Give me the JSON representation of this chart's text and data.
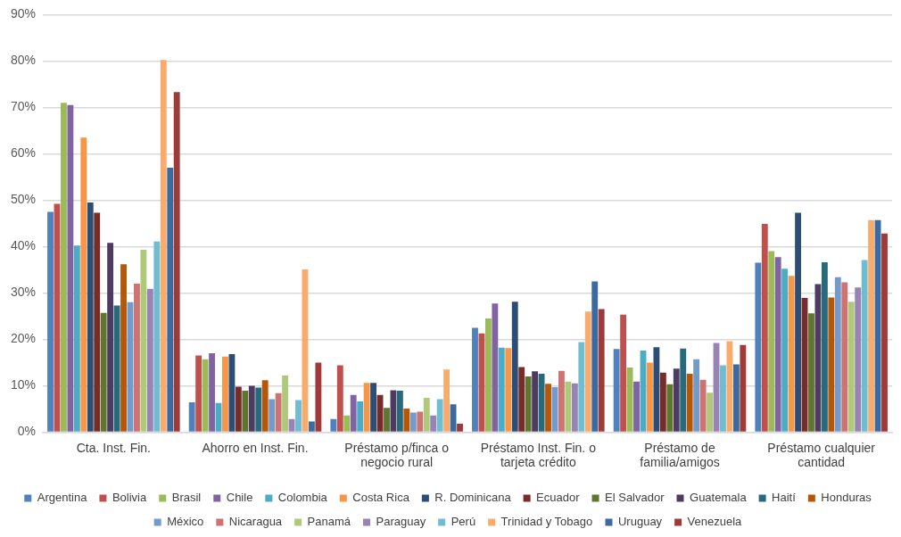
{
  "chart_data": {
    "type": "bar",
    "categories": [
      "Cta. Inst. Fin.",
      "Ahorro en Inst. Fin.",
      "Préstamo p/finca o negocio rural",
      "Préstamo Inst. Fin. o tarjeta crédito",
      "Préstamo de familia/amigos",
      "Préstamo cualquier cantidad"
    ],
    "series": [
      {
        "name": "Argentina",
        "color": "#4f81bd",
        "values": [
          47.5,
          6.4,
          2.8,
          22.5,
          17.9,
          36.5
        ]
      },
      {
        "name": "Bolivia",
        "color": "#c0504d",
        "values": [
          49.2,
          16.5,
          14.4,
          21.3,
          25.3,
          44.9
        ]
      },
      {
        "name": "Brasil",
        "color": "#9bbb59",
        "values": [
          71,
          15.7,
          3.6,
          24.5,
          13.9,
          39
        ]
      },
      {
        "name": "Chile",
        "color": "#8064a2",
        "values": [
          70.5,
          17,
          8,
          27.7,
          10.9,
          37.7
        ]
      },
      {
        "name": "Colombia",
        "color": "#4bacc6",
        "values": [
          40.2,
          6.3,
          6.6,
          18.2,
          17.6,
          35.2
        ]
      },
      {
        "name": "Costa Rica",
        "color": "#f79646",
        "values": [
          63.5,
          16.3,
          10.6,
          18.1,
          15,
          33.7
        ]
      },
      {
        "name": "R. Dominicana",
        "color": "#2c4d75",
        "values": [
          49.5,
          16.8,
          10.6,
          28.1,
          18.3,
          47.3
        ]
      },
      {
        "name": "Ecuador",
        "color": "#772c2a",
        "values": [
          47.3,
          9.8,
          8,
          14,
          12.8,
          28.9
        ]
      },
      {
        "name": "El Salvador",
        "color": "#5f7530",
        "values": [
          25.7,
          8.9,
          5.2,
          12,
          10.3,
          25.6
        ]
      },
      {
        "name": "Guatemala",
        "color": "#4d3b62",
        "values": [
          40.8,
          10,
          9,
          13.1,
          13.7,
          31.9
        ]
      },
      {
        "name": "Haití",
        "color": "#276a7c",
        "values": [
          27.3,
          9.6,
          8.9,
          12.6,
          18,
          36.6
        ]
      },
      {
        "name": "Honduras",
        "color": "#b65708",
        "values": [
          36.2,
          11.2,
          5.1,
          10.4,
          12.6,
          29
        ]
      },
      {
        "name": "México",
        "color": "#729aca",
        "values": [
          28,
          7.1,
          4.2,
          9.7,
          15.7,
          33.4
        ]
      },
      {
        "name": "Nicaragua",
        "color": "#cd7371",
        "values": [
          32,
          8.4,
          4.4,
          13.2,
          11.3,
          32.3
        ]
      },
      {
        "name": "Panamá",
        "color": "#afc97a",
        "values": [
          39.3,
          12.2,
          7.4,
          10.9,
          8.5,
          28.1
        ]
      },
      {
        "name": "Paraguay",
        "color": "#9983b5",
        "values": [
          30.9,
          2.8,
          3.6,
          10.5,
          19.2,
          31.2
        ]
      },
      {
        "name": "Perú",
        "color": "#6fbdd1",
        "values": [
          41.1,
          6.9,
          7.1,
          19.4,
          14.4,
          37.1
        ]
      },
      {
        "name": "Trinidad y Tobago",
        "color": "#f9ab6b",
        "values": [
          80.2,
          35.1,
          13.5,
          26,
          19.6,
          45.7
        ]
      },
      {
        "name": "Uruguay",
        "color": "#3a6a9f",
        "values": [
          57,
          2.3,
          6,
          32.5,
          14.6,
          45.7
        ]
      },
      {
        "name": "Venezuela",
        "color": "#9e3a38",
        "values": [
          73.3,
          15,
          1.8,
          26.5,
          18.8,
          42.8
        ]
      }
    ],
    "ylim": [
      0,
      90
    ],
    "yticks": [
      {
        "value": 0,
        "label": "0%"
      },
      {
        "value": 10,
        "label": "10%"
      },
      {
        "value": 20,
        "label": "20%"
      },
      {
        "value": 30,
        "label": "30%"
      },
      {
        "value": 40,
        "label": "40%"
      },
      {
        "value": 50,
        "label": "50%"
      },
      {
        "value": 60,
        "label": "60%"
      },
      {
        "value": 70,
        "label": "70%"
      },
      {
        "value": 80,
        "label": "80%"
      },
      {
        "value": 90,
        "label": "90%"
      }
    ],
    "grid": "y",
    "legend": "bottom"
  }
}
